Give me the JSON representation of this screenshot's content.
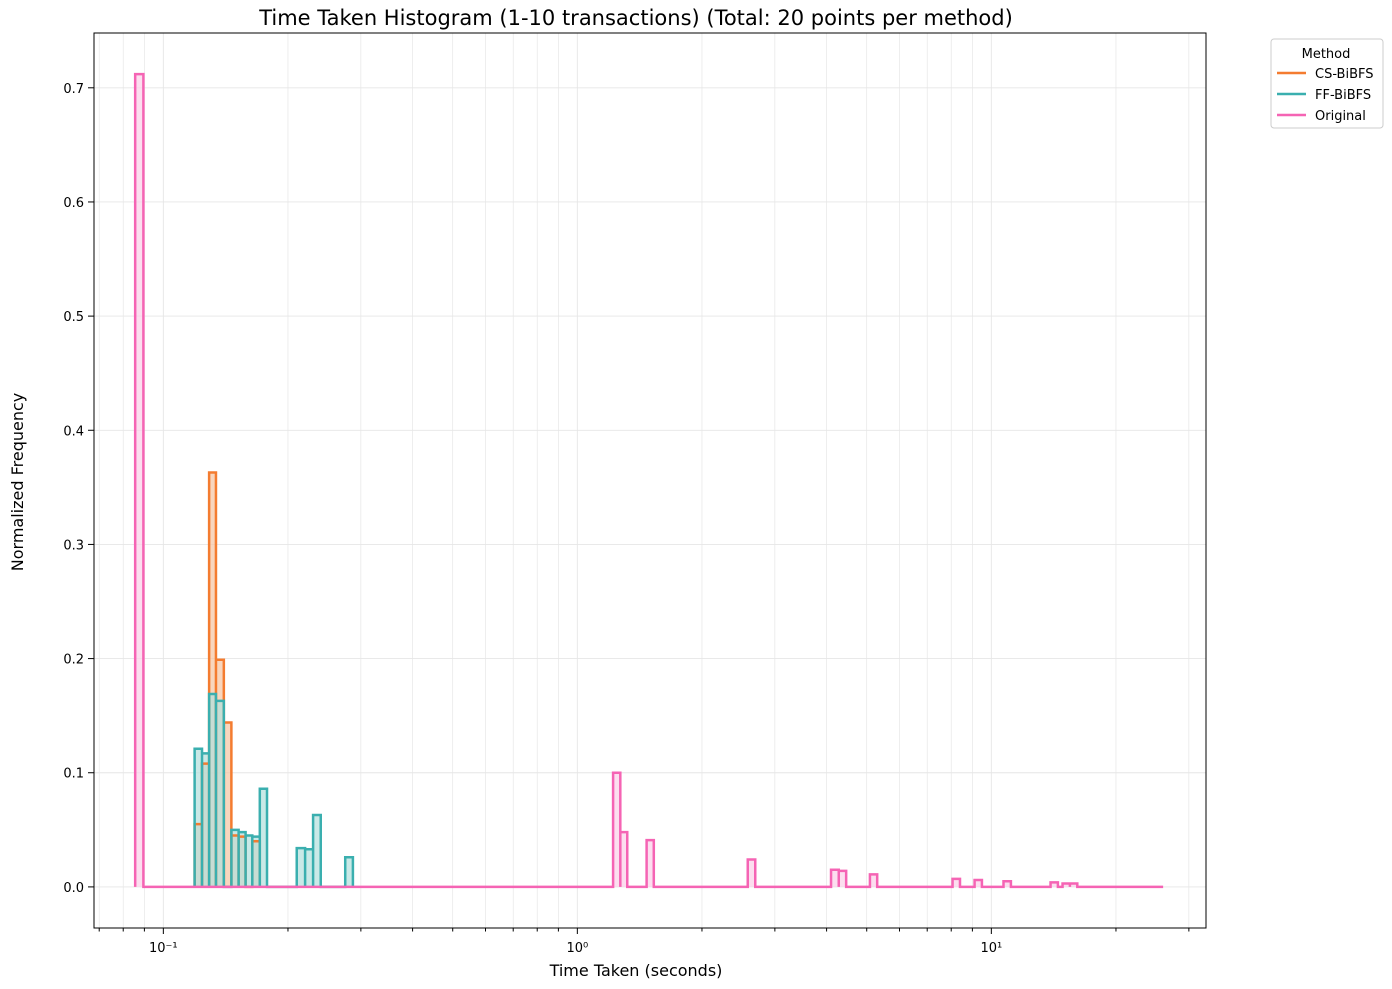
{
  "chart_data": {
    "type": "step-histogram",
    "title": "Time Taken Histogram (1-10 transactions) (Total: 20 points per method)",
    "xlabel": "Time Taken (seconds)",
    "ylabel": "Normalized Frequency",
    "xscale": "log",
    "xlim": [
      0.068,
      33
    ],
    "ylim": [
      -0.036,
      0.748
    ],
    "grid": true,
    "legend": {
      "title": "Method",
      "placement": "outside-top-right"
    },
    "x_tick_labels": [
      {
        "value": 0.1,
        "label": "10⁻¹"
      },
      {
        "value": 1,
        "label": "10⁰"
      },
      {
        "value": 10,
        "label": "10¹"
      }
    ],
    "y_ticks": [
      0.0,
      0.1,
      0.2,
      0.3,
      0.4,
      0.5,
      0.6,
      0.7
    ],
    "series": [
      {
        "name": "CS-BiBFS",
        "color": "#f47c30",
        "fill": "#f5c4a3",
        "bins": [
          [
            0.119,
            0.124,
            0.055
          ],
          [
            0.124,
            0.129,
            0.108
          ],
          [
            0.129,
            0.134,
            0.363
          ],
          [
            0.134,
            0.14,
            0.199
          ],
          [
            0.14,
            0.146,
            0.144
          ],
          [
            0.146,
            0.152,
            0.045
          ],
          [
            0.152,
            0.158,
            0.044
          ],
          [
            0.164,
            0.171,
            0.04
          ]
        ]
      },
      {
        "name": "FF-BiBFS",
        "color": "#3aafaf",
        "fill": "#b2dfdd",
        "bins": [
          [
            0.119,
            0.124,
            0.121
          ],
          [
            0.124,
            0.129,
            0.117
          ],
          [
            0.129,
            0.134,
            0.169
          ],
          [
            0.134,
            0.14,
            0.163
          ],
          [
            0.146,
            0.152,
            0.05
          ],
          [
            0.152,
            0.158,
            0.048
          ],
          [
            0.158,
            0.164,
            0.045
          ],
          [
            0.164,
            0.171,
            0.044
          ],
          [
            0.171,
            0.178,
            0.086
          ],
          [
            0.21,
            0.22,
            0.034
          ],
          [
            0.22,
            0.23,
            0.033
          ],
          [
            0.23,
            0.24,
            0.063
          ],
          [
            0.275,
            0.287,
            0.026
          ]
        ]
      },
      {
        "name": "Original",
        "color": "#f564b4",
        "fill": "#fbd0e8",
        "bins": [
          [
            0.0855,
            0.0895,
            0.712
          ],
          [
            1.22,
            1.27,
            0.1
          ],
          [
            1.27,
            1.32,
            0.048
          ],
          [
            1.47,
            1.53,
            0.041
          ],
          [
            2.58,
            2.69,
            0.024
          ],
          [
            4.1,
            4.28,
            0.015
          ],
          [
            4.28,
            4.46,
            0.014
          ],
          [
            5.09,
            5.3,
            0.011
          ],
          [
            8.06,
            8.4,
            0.007
          ],
          [
            9.11,
            9.49,
            0.006
          ],
          [
            10.7,
            11.15,
            0.005
          ],
          [
            13.9,
            14.48,
            0.004
          ],
          [
            14.86,
            15.48,
            0.003
          ],
          [
            15.48,
            16.13,
            0.003
          ]
        ],
        "baseline_extent": [
          0.0855,
          26.0
        ]
      }
    ]
  }
}
